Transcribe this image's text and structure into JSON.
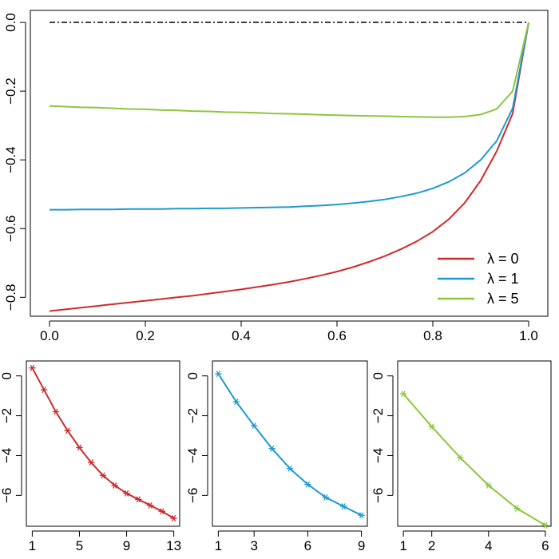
{
  "chart_data": [
    {
      "type": "line",
      "xlim": [
        -0.04,
        1.04
      ],
      "ylim": [
        -0.855,
        0.035
      ],
      "x_ticks": [
        "0.0",
        "0.2",
        "0.4",
        "0.6",
        "0.8",
        "1.0"
      ],
      "x_tick_values": [
        0,
        0.2,
        0.4,
        0.6,
        0.8,
        1.0
      ],
      "y_ticks": [
        "0.0",
        "−0.2",
        "−0.4",
        "−0.6",
        "−0.8"
      ],
      "y_tick_values": [
        0,
        -0.2,
        -0.4,
        -0.6,
        -0.8
      ],
      "reference_line": {
        "y": 0,
        "style": "dash-dot",
        "color": "#000000"
      },
      "legend_position": "bottom-right",
      "x": [
        0,
        0.0333,
        0.0667,
        0.1,
        0.1333,
        0.1667,
        0.2,
        0.2333,
        0.2667,
        0.3,
        0.3333,
        0.3667,
        0.4,
        0.4333,
        0.4667,
        0.5,
        0.5333,
        0.5667,
        0.6,
        0.6333,
        0.6667,
        0.7,
        0.7333,
        0.7667,
        0.8,
        0.8333,
        0.8667,
        0.9,
        0.9333,
        0.9667,
        1.0
      ],
      "series": [
        {
          "name": "λ =  0",
          "color": "#cd2c2c",
          "values": [
            -0.84,
            -0.835,
            -0.83,
            -0.825,
            -0.82,
            -0.815,
            -0.81,
            -0.805,
            -0.8,
            -0.795,
            -0.789,
            -0.783,
            -0.777,
            -0.77,
            -0.763,
            -0.755,
            -0.746,
            -0.736,
            -0.725,
            -0.712,
            -0.697,
            -0.68,
            -0.66,
            -0.637,
            -0.609,
            -0.573,
            -0.525,
            -0.46,
            -0.375,
            -0.265,
            0
          ]
        },
        {
          "name": "λ =  1",
          "color": "#1e9ad0",
          "values": [
            -0.545,
            -0.545,
            -0.544,
            -0.544,
            -0.544,
            -0.543,
            -0.543,
            -0.543,
            -0.542,
            -0.542,
            -0.541,
            -0.541,
            -0.54,
            -0.539,
            -0.538,
            -0.537,
            -0.535,
            -0.533,
            -0.53,
            -0.526,
            -0.521,
            -0.515,
            -0.507,
            -0.497,
            -0.483,
            -0.464,
            -0.438,
            -0.4,
            -0.345,
            -0.25,
            0
          ]
        },
        {
          "name": "λ =  5",
          "color": "#8dc63f",
          "values": [
            -0.243,
            -0.245,
            -0.247,
            -0.248,
            -0.25,
            -0.252,
            -0.253,
            -0.255,
            -0.256,
            -0.258,
            -0.259,
            -0.261,
            -0.262,
            -0.263,
            -0.265,
            -0.266,
            -0.267,
            -0.269,
            -0.27,
            -0.271,
            -0.272,
            -0.273,
            -0.274,
            -0.275,
            -0.276,
            -0.276,
            -0.274,
            -0.268,
            -0.252,
            -0.2,
            0
          ]
        }
      ]
    },
    {
      "type": "line",
      "marker": "asterisk",
      "color": "#cd2c2c",
      "xlim": [
        0.5,
        13.5
      ],
      "ylim": [
        -7.55,
        0.75
      ],
      "x_ticks": [
        "1",
        "5",
        "9",
        "13"
      ],
      "x_tick_values": [
        1,
        5,
        9,
        13
      ],
      "y_ticks": [
        "0",
        "−2",
        "−4",
        "−6"
      ],
      "y_tick_values": [
        0,
        -2,
        -4,
        -6
      ],
      "x": [
        1,
        2,
        3,
        4,
        5,
        6,
        7,
        8,
        9,
        10,
        11,
        12,
        13
      ],
      "values": [
        0.4,
        -0.7,
        -1.8,
        -2.75,
        -3.6,
        -4.35,
        -5.0,
        -5.5,
        -5.9,
        -6.2,
        -6.5,
        -6.8,
        -7.15
      ]
    },
    {
      "type": "line",
      "marker": "asterisk",
      "color": "#1e9ad0",
      "xlim": [
        0.67,
        9.33
      ],
      "ylim": [
        -7.55,
        0.75
      ],
      "x_ticks": [
        "1",
        "3",
        "6",
        "9"
      ],
      "x_tick_values": [
        1,
        3,
        6,
        9
      ],
      "y_ticks": [
        "0",
        "−2",
        "−4",
        "−6"
      ],
      "y_tick_values": [
        0,
        -2,
        -4,
        -6
      ],
      "x": [
        1,
        2,
        3,
        4,
        5,
        6,
        7,
        8,
        9
      ],
      "values": [
        0.1,
        -1.3,
        -2.5,
        -3.65,
        -4.65,
        -5.45,
        -6.1,
        -6.55,
        -7.0
      ]
    },
    {
      "type": "line",
      "marker": "asterisk",
      "color": "#8dc63f",
      "xlim": [
        0.8,
        6.2
      ],
      "ylim": [
        -7.55,
        0.75
      ],
      "x_ticks": [
        "1",
        "2",
        "4",
        "6"
      ],
      "x_tick_values": [
        1,
        2,
        4,
        6
      ],
      "y_ticks": [
        "0",
        "−2",
        "−4",
        "−6"
      ],
      "y_tick_values": [
        0,
        -2,
        -4,
        -6
      ],
      "x": [
        1,
        2,
        3,
        4,
        5,
        6
      ],
      "values": [
        -0.9,
        -2.55,
        -4.1,
        -5.5,
        -6.65,
        -7.5
      ]
    }
  ]
}
